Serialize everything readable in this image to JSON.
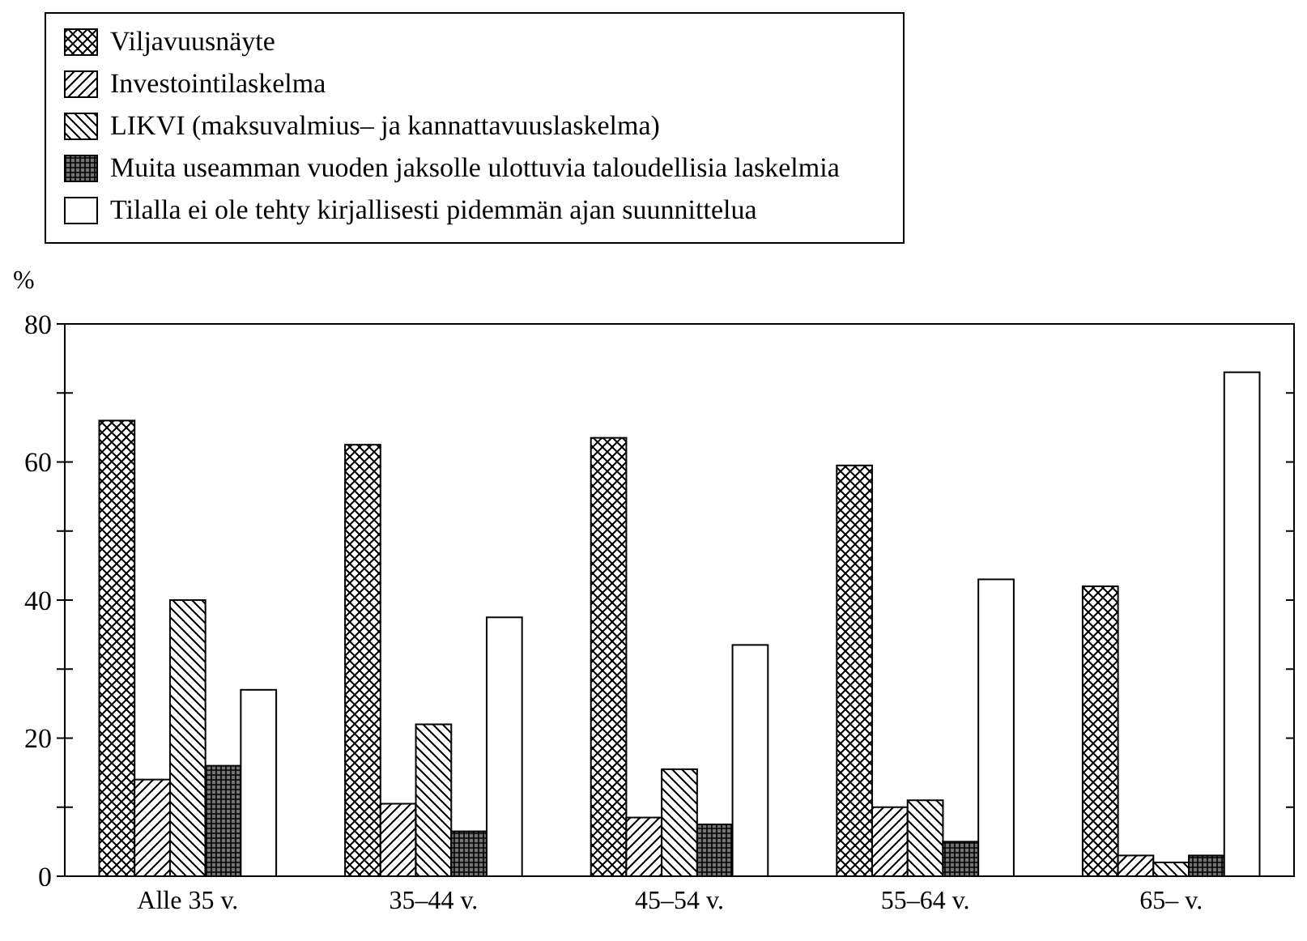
{
  "chart_data": {
    "type": "bar",
    "ylabel": "%",
    "legend": "top",
    "grid": false,
    "categories": [
      "Alle 35 v.",
      "35–44 v.",
      "45–54 v.",
      "55–64 v.",
      "65– v."
    ],
    "ylim": [
      0,
      80
    ],
    "yticks": [
      0,
      {
        "value": 10,
        "label": null
      },
      20,
      {
        "value": 30,
        "label": null
      },
      40,
      {
        "value": 50,
        "label": null
      },
      60,
      {
        "value": 70,
        "label": null
      },
      80
    ],
    "series": [
      {
        "name": "Viljavuusnäyte",
        "color": "#000000",
        "values": [
          66,
          62.5,
          63.5,
          59.5,
          42
        ]
      },
      {
        "name": "Investointilaskelma",
        "color": "#000000",
        "values": [
          14,
          10.5,
          8.5,
          10,
          3
        ]
      },
      {
        "name": "LIKVI (maksuvalmius– ja kannattavuuslaskelma)",
        "color": "#000000",
        "values": [
          40,
          22,
          15.5,
          11,
          2
        ]
      },
      {
        "name": "Muita useamman vuoden jaksolle ulottuvia taloudellisia laskelmia",
        "color": "#000000",
        "values": [
          16,
          6.5,
          7.5,
          5,
          3
        ]
      },
      {
        "name": "Tilalla ei ole tehty kirjallisesti pidemmän ajan suunnittelua",
        "color": "#ffffff",
        "values": [
          27,
          37.5,
          33.5,
          43,
          73
        ]
      }
    ]
  }
}
